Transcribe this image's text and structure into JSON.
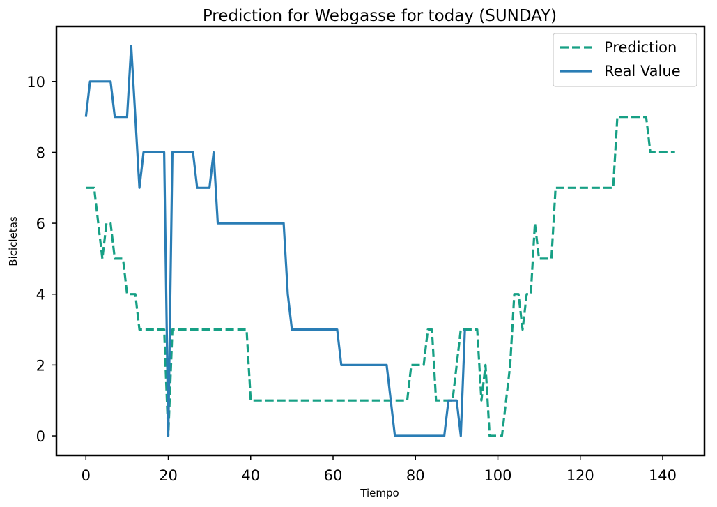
{
  "chart_data": {
    "type": "line",
    "title": "Prediction for Webgasse for today (SUNDAY)",
    "xlabel": "Tiempo",
    "ylabel": "Bicicletas",
    "xlim": [
      -7.15,
      150.15
    ],
    "ylim": [
      -0.55,
      11.55
    ],
    "xticks": [
      0,
      20,
      40,
      60,
      80,
      100,
      120,
      140
    ],
    "yticks": [
      0,
      2,
      4,
      6,
      8,
      10
    ],
    "grid": false,
    "legend_position": "top-right",
    "series": [
      {
        "name": "Prediction",
        "style": "dashed",
        "color": "#17a085",
        "x": [
          0,
          1,
          2,
          3,
          4,
          5,
          6,
          7,
          8,
          9,
          10,
          11,
          12,
          13,
          14,
          15,
          16,
          17,
          18,
          19,
          20,
          21,
          22,
          23,
          24,
          25,
          26,
          27,
          28,
          29,
          30,
          31,
          32,
          33,
          34,
          35,
          36,
          37,
          38,
          39,
          40,
          41,
          42,
          43,
          44,
          45,
          46,
          47,
          48,
          49,
          50,
          51,
          52,
          53,
          54,
          55,
          56,
          57,
          58,
          59,
          60,
          61,
          62,
          63,
          64,
          65,
          66,
          67,
          68,
          69,
          70,
          71,
          72,
          73,
          74,
          75,
          76,
          77,
          78,
          79,
          80,
          81,
          82,
          83,
          84,
          85,
          86,
          87,
          88,
          89,
          90,
          91,
          92,
          93,
          94,
          95,
          96,
          97,
          98,
          99,
          100,
          101,
          102,
          103,
          104,
          105,
          106,
          107,
          108,
          109,
          110,
          111,
          112,
          113,
          114,
          115,
          116,
          117,
          118,
          119,
          120,
          121,
          122,
          123,
          124,
          125,
          126,
          127,
          128,
          129,
          130,
          131,
          132,
          133,
          134,
          135,
          136,
          137,
          138,
          139,
          140,
          141,
          142,
          143
        ],
        "values": [
          7,
          7,
          7,
          6,
          5,
          6,
          6,
          5,
          5,
          5,
          4,
          4,
          4,
          3,
          3,
          3,
          3,
          3,
          3,
          3,
          0,
          3,
          3,
          3,
          3,
          3,
          3,
          3,
          3,
          3,
          3,
          3,
          3,
          3,
          3,
          3,
          3,
          3,
          3,
          3,
          1,
          1,
          1,
          1,
          1,
          1,
          1,
          1,
          1,
          1,
          1,
          1,
          1,
          1,
          1,
          1,
          1,
          1,
          1,
          1,
          1,
          1,
          1,
          1,
          1,
          1,
          1,
          1,
          1,
          1,
          1,
          1,
          1,
          1,
          1,
          1,
          1,
          1,
          1,
          2,
          2,
          2,
          2,
          3,
          3,
          1,
          1,
          1,
          1,
          1,
          2,
          3,
          3,
          3,
          3,
          3,
          1,
          2,
          0,
          0,
          0,
          0,
          1,
          2,
          4,
          4,
          3,
          4,
          4,
          6,
          5,
          5,
          5,
          5,
          7,
          7,
          7,
          7,
          7,
          7,
          7,
          7,
          7,
          7,
          7,
          7,
          7,
          7,
          7,
          9,
          9,
          9,
          9,
          9,
          9,
          9,
          9,
          8,
          8,
          8,
          8,
          8,
          8,
          8
        ]
      },
      {
        "name": "Real Value",
        "style": "solid",
        "color": "#2a7db5",
        "x": [
          0,
          1,
          2,
          3,
          4,
          5,
          6,
          7,
          8,
          9,
          10,
          11,
          12,
          13,
          14,
          15,
          16,
          17,
          18,
          19,
          20,
          21,
          22,
          23,
          24,
          25,
          26,
          27,
          28,
          29,
          30,
          31,
          32,
          33,
          34,
          35,
          36,
          37,
          38,
          39,
          40,
          41,
          42,
          43,
          44,
          45,
          46,
          47,
          48,
          49,
          50,
          51,
          52,
          53,
          54,
          55,
          56,
          57,
          58,
          59,
          60,
          61,
          62,
          63,
          64,
          65,
          66,
          67,
          68,
          69,
          70,
          71,
          72,
          73,
          74,
          75,
          76,
          77,
          78,
          79,
          80,
          81,
          82,
          83,
          84,
          85,
          86,
          87,
          88,
          89,
          90,
          91,
          92
        ],
        "values": [
          9,
          10,
          10,
          10,
          10,
          10,
          10,
          9,
          9,
          9,
          9,
          11,
          9,
          7,
          8,
          8,
          8,
          8,
          8,
          8,
          0,
          8,
          8,
          8,
          8,
          8,
          8,
          7,
          7,
          7,
          7,
          8,
          6,
          6,
          6,
          6,
          6,
          6,
          6,
          6,
          6,
          6,
          6,
          6,
          6,
          6,
          6,
          6,
          6,
          4,
          3,
          3,
          3,
          3,
          3,
          3,
          3,
          3,
          3,
          3,
          3,
          3,
          2,
          2,
          2,
          2,
          2,
          2,
          2,
          2,
          2,
          2,
          2,
          2,
          1,
          0,
          0,
          0,
          0,
          0,
          0,
          0,
          0,
          0,
          0,
          0,
          0,
          0,
          1,
          1,
          1,
          0,
          3
        ]
      }
    ]
  }
}
